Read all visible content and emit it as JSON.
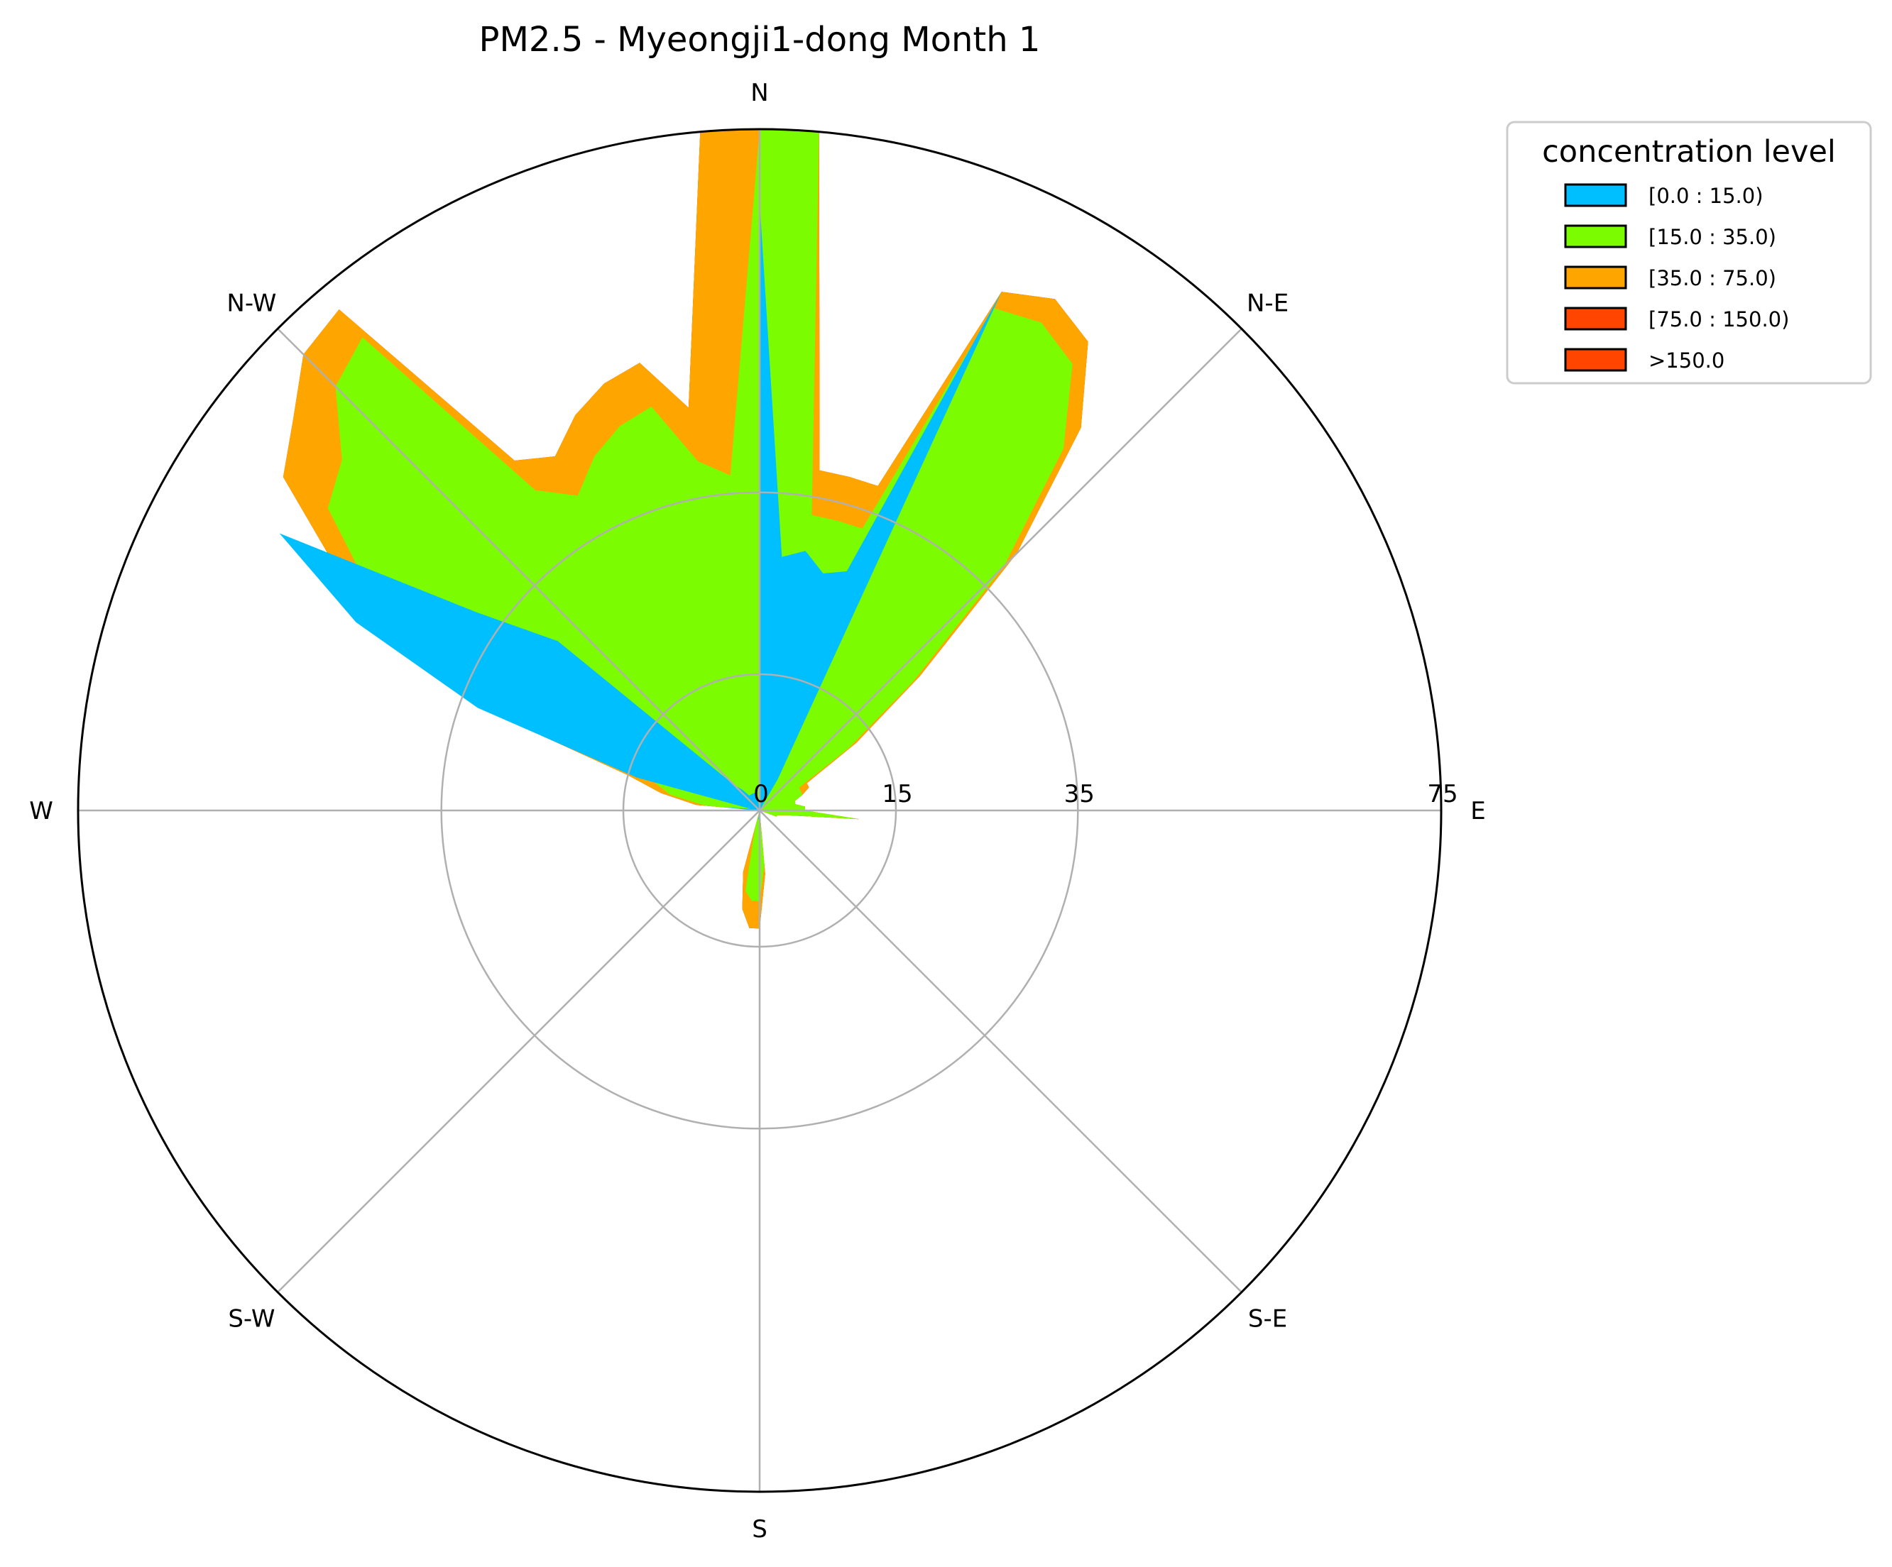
{
  "chart_data": {
    "type": "polar-area",
    "title": "PM2.5 - Myeongji1-dong Month 1",
    "directions": [
      "N",
      "N-E",
      "E",
      "S-E",
      "S",
      "S-W",
      "W",
      "N-W"
    ],
    "radial_ticks": [
      "0",
      "15",
      "35",
      "75"
    ],
    "radial_tick_values": [
      0,
      15,
      35,
      75
    ],
    "radial_scale": "nonlinear",
    "grid": true,
    "legend": {
      "title": "concentration level",
      "placement": "top-right outside",
      "entries": [
        "[0.0 : 15.0)",
        "[15.0 : 35.0)",
        "[35.0 : 75.0)",
        "[75.0 : 150.0)",
        ">150.0"
      ]
    },
    "colors": [
      "#00bfff",
      "#7cfc00",
      "#ffa500",
      "#ff4500",
      "#ff4500"
    ],
    "angles_deg": [
      0,
      5,
      10,
      15,
      20,
      25,
      30,
      35,
      40,
      45,
      50,
      55,
      60,
      65,
      70,
      75,
      80,
      85,
      90,
      95,
      100,
      105,
      110,
      115,
      120,
      125,
      130,
      135,
      140,
      145,
      150,
      155,
      160,
      165,
      170,
      175,
      180,
      185,
      190,
      195,
      200,
      205,
      210,
      215,
      220,
      225,
      230,
      235,
      240,
      245,
      250,
      255,
      260,
      265,
      270,
      275,
      280,
      285,
      290,
      295,
      300,
      305,
      310,
      315,
      320,
      325,
      330,
      335,
      340,
      345,
      350,
      355
    ],
    "series": [
      {
        "name": "[0.0 : 15.0)",
        "values": [
          67,
          28,
          29,
          27,
          28,
          63,
          4,
          0,
          0,
          0,
          0,
          0,
          0,
          0,
          0,
          0,
          0,
          0,
          0,
          0,
          0,
          0,
          0,
          0,
          0,
          0,
          0,
          0,
          0,
          0,
          0,
          0,
          0,
          0,
          0,
          0,
          0.5,
          1,
          1,
          0,
          0,
          0,
          0,
          0,
          0,
          0,
          0,
          0,
          0,
          0,
          0,
          0,
          0,
          0,
          0.5,
          4,
          1,
          14,
          33,
          49,
          61,
          38,
          29,
          4,
          3,
          2,
          2,
          2,
          2,
          2,
          1,
          0.5
        ]
      },
      {
        "name": "[15.0 : 35.0)",
        "values": [
          75,
          75,
          33,
          33,
          33,
          61,
          62,
          60,
          52,
          38,
          22,
          12,
          5,
          5,
          5,
          4,
          4,
          5,
          5,
          11,
          3,
          2,
          2,
          0,
          0,
          0,
          0,
          0,
          0,
          0,
          0,
          0,
          0,
          0,
          0,
          6,
          10,
          10,
          9,
          2,
          0,
          0,
          0,
          0,
          0,
          0,
          0,
          0,
          0,
          0,
          0,
          0,
          0,
          0,
          0,
          6,
          10,
          12,
          28,
          42,
          50,
          58,
          60,
          66,
          68,
          43,
          40,
          43,
          45,
          46,
          39,
          37
        ]
      },
      {
        "name": "[35.0 : 75.0)",
        "values": [
          75,
          75,
          38,
          38,
          38,
          63,
          65,
          63,
          55,
          40,
          23,
          13,
          6,
          6,
          5,
          4,
          4,
          5,
          5,
          11,
          3,
          2,
          2,
          0,
          0,
          0,
          0,
          0,
          0,
          0,
          0,
          0,
          0,
          0,
          0,
          7,
          13,
          13,
          11,
          7,
          0,
          0,
          0,
          0,
          0,
          0,
          0,
          0,
          0,
          0,
          0,
          0,
          0,
          0,
          0,
          7,
          11,
          15,
          31,
          46,
          54,
          64,
          67,
          71,
          72,
          47,
          45,
          48,
          50,
          51,
          45,
          75
        ]
      },
      {
        "name": "[75.0 : 150.0)",
        "values": [
          75,
          75,
          38,
          38,
          38,
          63,
          65,
          63,
          55,
          40,
          23,
          13,
          6,
          6,
          5,
          4,
          4,
          5,
          5,
          11,
          3,
          2,
          2,
          0,
          0,
          0,
          0,
          0,
          0,
          0,
          0,
          0,
          0,
          0,
          0,
          7,
          13,
          13,
          11,
          7,
          0,
          0,
          0,
          0,
          0,
          0,
          0,
          0,
          0,
          0,
          0,
          0,
          0,
          0,
          0,
          7,
          11,
          15,
          31,
          46,
          54,
          64,
          67,
          71,
          72,
          47,
          45,
          48,
          50,
          51,
          45,
          75
        ]
      },
      {
        "name": ">150.0",
        "values": [
          75,
          75,
          38,
          38,
          38,
          63,
          65,
          63,
          55,
          40,
          23,
          13,
          6,
          6,
          5,
          4,
          4,
          5,
          5,
          11,
          3,
          2,
          2,
          0,
          0,
          0,
          0,
          0,
          0,
          0,
          0,
          0,
          0,
          0,
          0,
          7,
          13,
          13,
          11,
          7,
          0,
          0,
          0,
          0,
          0,
          0,
          0,
          0,
          0,
          0,
          0,
          0,
          0,
          0,
          0,
          7,
          11,
          15,
          31,
          46,
          54,
          64,
          67,
          71,
          72,
          47,
          45,
          48,
          50,
          51,
          45,
          75
        ]
      }
    ]
  }
}
